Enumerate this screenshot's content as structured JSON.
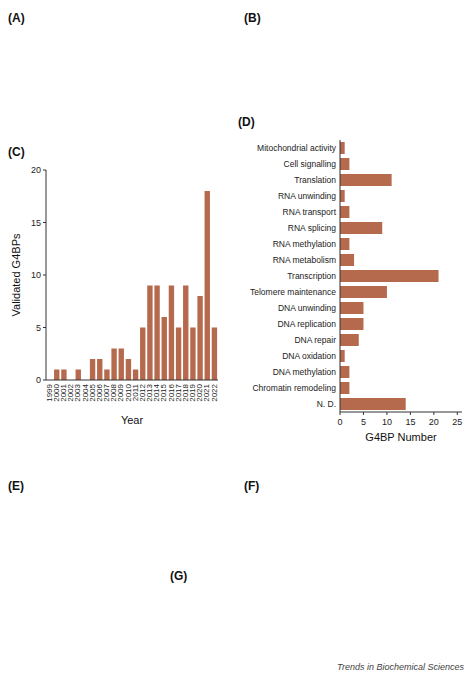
{
  "chart_data": [
    {
      "type": "bar",
      "title": "(C)",
      "categories": [
        "1999",
        "2000",
        "2001",
        "2002",
        "2003",
        "2004",
        "2005",
        "2006",
        "2007",
        "2008",
        "2009",
        "2010",
        "2011",
        "2012",
        "2013",
        "2014",
        "2015",
        "2016",
        "2017",
        "2018",
        "2019",
        "2020",
        "2021",
        "2022"
      ],
      "values": [
        0,
        1,
        1,
        0,
        1,
        0,
        2,
        2,
        1,
        3,
        3,
        2,
        1,
        5,
        9,
        9,
        6,
        9,
        5,
        9,
        5,
        8,
        18,
        5
      ],
      "color": "#b5694d",
      "ylabel": "Validated G4BPs",
      "xlabel": "Year",
      "ylim": [
        0,
        20
      ],
      "yticks": [
        0,
        5,
        10,
        15,
        20
      ]
    },
    {
      "type": "bar",
      "orientation": "horizontal",
      "title": "(D)",
      "categories": [
        "Mitochondrial activity",
        "Cell signalling",
        "Translation",
        "RNA unwinding",
        "RNA transport",
        "RNA splicing",
        "RNA methylation",
        "RNA metabolism",
        "Transcription",
        "Telomere maintenance",
        "DNA unwinding",
        "DNA replication",
        "DNA repair",
        "DNA oxidation",
        "DNA methylation",
        "Chromatin remodeling",
        "N. D."
      ],
      "values": [
        1,
        2,
        11,
        1,
        2,
        9,
        2,
        3,
        21,
        10,
        5,
        5,
        4,
        1,
        2,
        2,
        14
      ],
      "color": "#b5694d",
      "xlabel": "G4BP Number",
      "xlim": [
        0,
        26
      ],
      "xticks": [
        0,
        5,
        10,
        15,
        20,
        25
      ]
    }
  ],
  "annotations": [
    "(A)",
    "(B)",
    "(E)",
    "(F)",
    "(G)",
    "Trends in Biochemical Sciences"
  ]
}
